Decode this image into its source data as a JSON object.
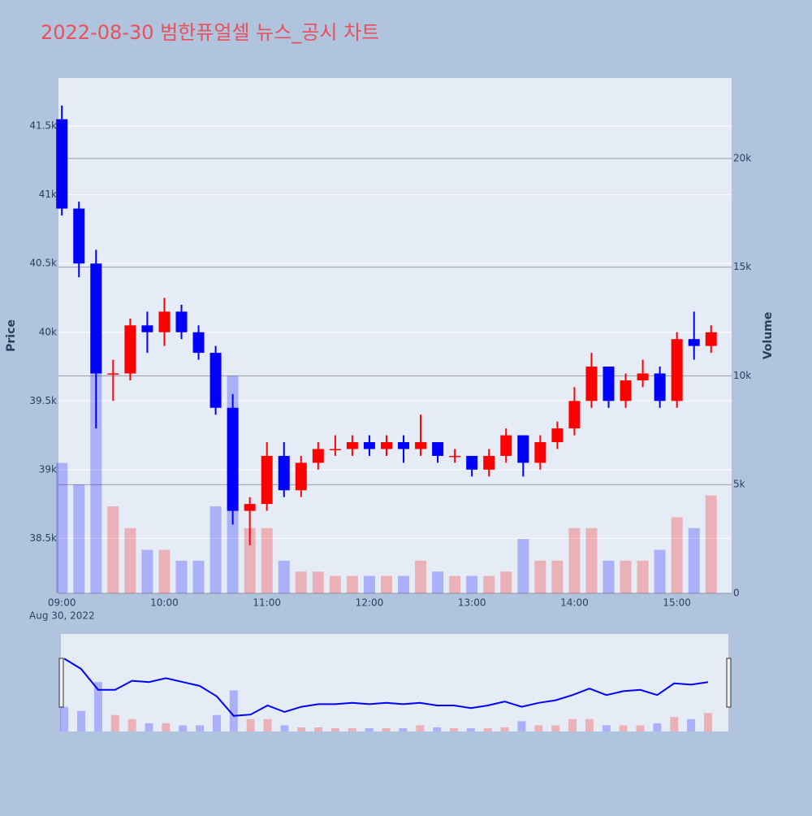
{
  "chart_data": {
    "type": "candlestick",
    "title": "2022-08-30 범한퓨얼셀 뉴스_공시 차트",
    "y_title": "Price",
    "y2_title": "Volume",
    "x_date_label": "Aug 30, 2022",
    "up_color": "#ff0000",
    "down_color": "#0000ff",
    "x": [
      "09:00",
      "09:10",
      "09:20",
      "09:30",
      "09:40",
      "09:50",
      "10:00",
      "10:10",
      "10:20",
      "10:30",
      "10:40",
      "10:50",
      "11:00",
      "11:10",
      "11:20",
      "11:30",
      "11:40",
      "11:50",
      "12:00",
      "12:10",
      "12:20",
      "12:30",
      "12:40",
      "12:50",
      "13:00",
      "13:10",
      "13:20",
      "13:30",
      "13:40",
      "13:50",
      "14:00",
      "14:10",
      "14:20",
      "14:30",
      "14:40",
      "14:50",
      "15:00",
      "15:10",
      "15:20"
    ],
    "open": [
      41550,
      40900,
      40500,
      39700,
      39700,
      40050,
      40000,
      40150,
      40000,
      39850,
      39450,
      38700,
      38750,
      39100,
      38850,
      39050,
      39150,
      39150,
      39200,
      39150,
      39200,
      39150,
      39200,
      39100,
      39100,
      39000,
      39100,
      39250,
      39050,
      39200,
      39300,
      39500,
      39750,
      39500,
      39650,
      39700,
      39500,
      39950,
      39900
    ],
    "high": [
      41650,
      40950,
      40600,
      39800,
      40100,
      40150,
      40250,
      40200,
      40050,
      39900,
      39550,
      38800,
      39200,
      39200,
      39100,
      39200,
      39250,
      39250,
      39250,
      39250,
      39250,
      39400,
      39200,
      39150,
      39100,
      39150,
      39300,
      39250,
      39250,
      39350,
      39600,
      39850,
      39750,
      39700,
      39800,
      39750,
      40000,
      40150,
      40050
    ],
    "low": [
      40850,
      40400,
      39300,
      39500,
      39650,
      39850,
      39900,
      39950,
      39800,
      39400,
      38600,
      38450,
      38700,
      38800,
      38800,
      39000,
      39100,
      39100,
      39100,
      39100,
      39050,
      39100,
      39050,
      39050,
      38950,
      38950,
      39050,
      38950,
      39000,
      39150,
      39250,
      39450,
      39450,
      39450,
      39600,
      39450,
      39450,
      39800,
      39850
    ],
    "close": [
      40900,
      40500,
      39700,
      39700,
      40050,
      40000,
      40150,
      40000,
      39850,
      39450,
      38700,
      38750,
      39100,
      38850,
      39050,
      39150,
      39150,
      39200,
      39150,
      39200,
      39150,
      39200,
      39100,
      39100,
      39000,
      39100,
      39250,
      39050,
      39200,
      39300,
      39500,
      39750,
      39500,
      39650,
      39700,
      39500,
      39950,
      39900,
      40000
    ],
    "volume": [
      6000,
      5000,
      12000,
      4000,
      3000,
      2000,
      2000,
      1500,
      1500,
      4000,
      10000,
      3000,
      3000,
      1500,
      1000,
      1000,
      800,
      800,
      800,
      800,
      800,
      1500,
      1000,
      800,
      800,
      800,
      1000,
      2500,
      1500,
      1500,
      3000,
      3000,
      1500,
      1500,
      1500,
      2000,
      3500,
      3000,
      4500
    ],
    "xlim": [
      "08:58",
      "15:32"
    ],
    "xticks": [
      "09:00",
      "10:00",
      "11:00",
      "12:00",
      "13:00",
      "14:00",
      "15:00"
    ],
    "ylim": [
      38100,
      41850
    ],
    "yticks": [
      {
        "value": 38500,
        "label": "38.5k"
      },
      {
        "value": 39000,
        "label": "39k"
      },
      {
        "value": 39500,
        "label": "39.5k"
      },
      {
        "value": 40000,
        "label": "40k"
      },
      {
        "value": 40500,
        "label": "40.5k"
      },
      {
        "value": 41000,
        "label": "41k"
      },
      {
        "value": 41500,
        "label": "41.5k"
      }
    ],
    "y2lim": [
      0,
      23700
    ],
    "y2ticks": [
      0,
      {
        "value": 5000,
        "label": "5k"
      },
      {
        "value": 10000,
        "label": "10k"
      },
      {
        "value": 15000,
        "label": "15k"
      },
      {
        "value": 20000,
        "label": "20k"
      }
    ],
    "grid": true
  }
}
